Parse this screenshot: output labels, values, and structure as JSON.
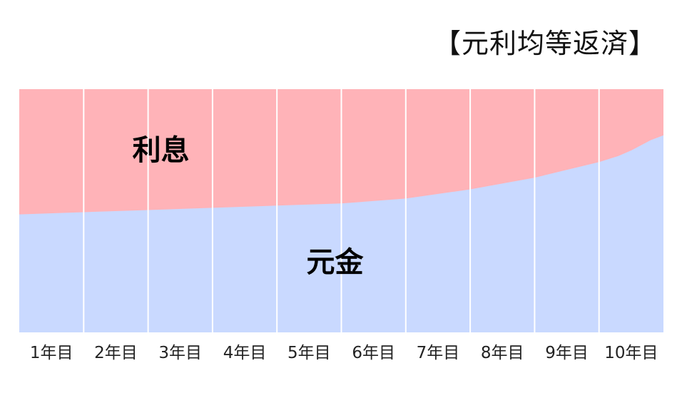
{
  "title": "【元利均等返済】",
  "colors": {
    "interest": "#FFB3B8",
    "principal": "#C9D9FF",
    "gridline": "#ffffff"
  },
  "chart_data": {
    "type": "area",
    "title": "【元利均等返済】",
    "categories": [
      "1年目",
      "2年目",
      "3年目",
      "4年目",
      "5年目",
      "6年目",
      "7年目",
      "8年目",
      "9年目",
      "10年目"
    ],
    "stacked": true,
    "y_unit": "share of each annual payment (%)",
    "ylim": [
      0,
      100
    ],
    "principal_boundary": {
      "x": [
        0,
        1,
        2,
        3,
        4,
        5,
        6,
        7,
        8,
        9,
        9.3,
        9.5,
        9.8,
        10
      ],
      "y": [
        48.5,
        49.4,
        50.3,
        51.2,
        52.1,
        53.0,
        55.0,
        58.8,
        63.6,
        70.0,
        72.5,
        74.8,
        79.0,
        81.0
      ]
    },
    "series": [
      {
        "name": "利息",
        "area": "upper"
      },
      {
        "name": "元金",
        "area": "lower"
      }
    ],
    "grid": true,
    "legend": "none"
  }
}
